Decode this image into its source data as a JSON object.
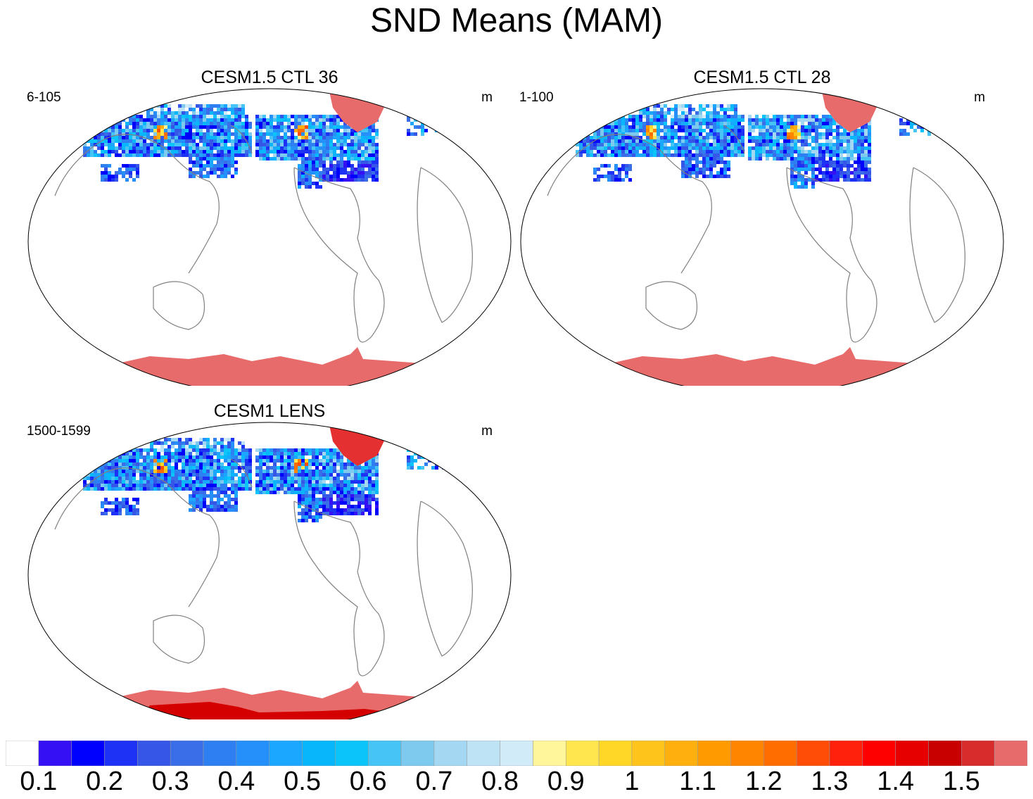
{
  "title": "SND Means (MAM)",
  "panels": [
    {
      "title": "CESM1.5 CTL 36",
      "left_label": "6-105",
      "right_label": "m"
    },
    {
      "title": "CESM1.5 CTL 28",
      "left_label": "1-100",
      "right_label": "m"
    },
    {
      "title": "CESM1 LENS",
      "left_label": "1500-1599",
      "right_label": "m"
    }
  ],
  "colorbar": {
    "colors": [
      "#ffffff",
      "#3510f5",
      "#0000ff",
      "#1e32f5",
      "#3556e6",
      "#3a6ee8",
      "#2d7ff2",
      "#2590fa",
      "#1ba6ff",
      "#08b6fb",
      "#0bc4fa",
      "#45c4f5",
      "#7ecaef",
      "#a4d7f2",
      "#bde3f5",
      "#d2ebf9",
      "#fff69b",
      "#ffe64f",
      "#ffd726",
      "#ffc41c",
      "#ffb00f",
      "#ff9b00",
      "#ff8400",
      "#ff6c00",
      "#ff4d08",
      "#ff210c",
      "#ff0000",
      "#e60000",
      "#c80000",
      "#d82c2c",
      "#e86b6b"
    ],
    "labels": [
      "0.1",
      "0.2",
      "0.3",
      "0.4",
      "0.5",
      "0.6",
      "0.7",
      "0.8",
      "0.9",
      "1",
      "1.1",
      "1.2",
      "1.3",
      "1.4",
      "1.5"
    ]
  }
}
